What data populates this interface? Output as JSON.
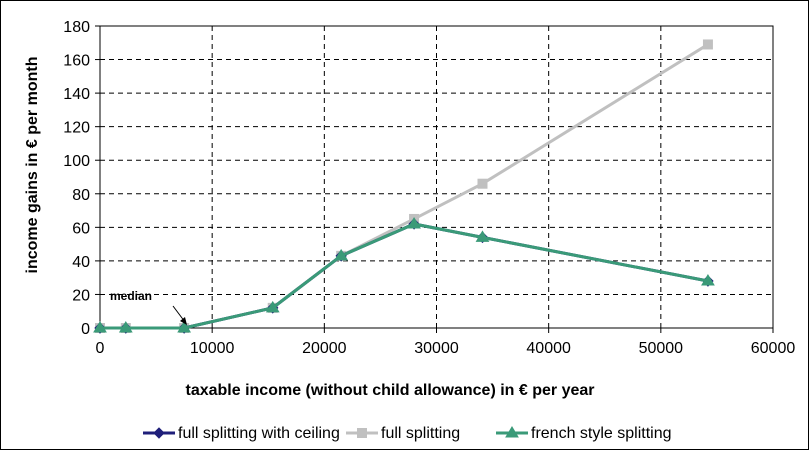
{
  "chart_data": {
    "type": "line",
    "xlabel": "taxable income (without child allowance) in € per year",
    "ylabel": "income gains in € per month",
    "xlim": [
      0,
      60000
    ],
    "ylim": [
      0,
      180
    ],
    "xticks": [
      0,
      10000,
      20000,
      30000,
      40000,
      50000,
      60000
    ],
    "yticks": [
      0,
      20,
      40,
      60,
      80,
      100,
      120,
      140,
      160,
      180
    ],
    "grid": true,
    "legend_position": "bottom",
    "annotation": {
      "text": "median",
      "x": 7500,
      "y": 0
    },
    "series": [
      {
        "name": "full splitting with ceiling",
        "color": "#1f1f7a",
        "marker": "diamond",
        "x": [
          0,
          2300,
          7500,
          15400,
          21500,
          28000,
          34100,
          54200
        ],
        "values": [
          0,
          0,
          0,
          12,
          43,
          62,
          54,
          28
        ]
      },
      {
        "name": "full splitting",
        "color": "#c0c0c0",
        "marker": "square",
        "x": [
          0,
          2300,
          7500,
          15400,
          21500,
          28000,
          34100,
          54200
        ],
        "values": [
          0,
          0,
          0,
          12,
          43,
          65,
          86,
          169
        ]
      },
      {
        "name": "french style splitting",
        "color": "#3a9a78",
        "marker": "triangle",
        "x": [
          0,
          2300,
          7500,
          15400,
          21500,
          28000,
          34100,
          54200
        ],
        "values": [
          0,
          0,
          0,
          12,
          43,
          62,
          54,
          28
        ]
      }
    ]
  }
}
